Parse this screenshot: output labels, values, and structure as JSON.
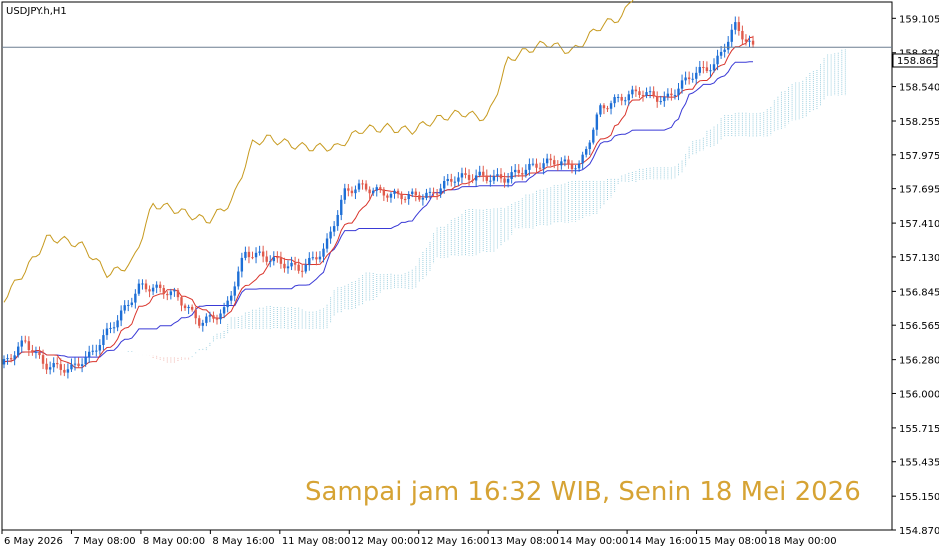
{
  "chart_data": {
    "type": "candlestick",
    "symbol": "USDJPY.h,H1",
    "caption": "Sampai jam 16:32 WIB, Senin 18 Mei 2026",
    "current_price": "158.865",
    "y_ticks": [
      "159.105",
      "158.820",
      "158.540",
      "158.255",
      "157.975",
      "157.695",
      "157.410",
      "157.130",
      "156.845",
      "156.565",
      "156.280",
      "156.000",
      "155.715",
      "155.435",
      "155.150",
      "154.870"
    ],
    "ylim": [
      154.87,
      159.24
    ],
    "x_labels": [
      "6 May 2026",
      "7 May 08:00",
      "8 May 00:00",
      "8 May 16:00",
      "11 May 08:00",
      "12 May 00:00",
      "12 May 16:00",
      "13 May 08:00",
      "14 May 00:00",
      "14 May 16:00",
      "15 May 08:00",
      "18 May 00:00"
    ],
    "grid": false,
    "colors": {
      "bull": "#1e6fd6",
      "bear": "#e05a4b",
      "tenkan": "#d9342b",
      "kijun": "#3a3ad6",
      "chikou": "#c79a1f",
      "cloud_bull": "#9fd0e0",
      "cloud_bear": "#f0b7b0",
      "price_line": "#6d7f91",
      "caption": "#d6a334"
    }
  }
}
